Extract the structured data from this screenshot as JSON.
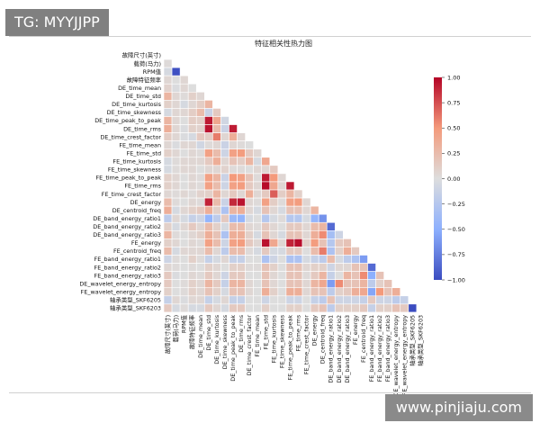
{
  "overlay": {
    "tag": "TG: MYYJJPP",
    "watermark": "www.pinjiaju.com"
  },
  "colors": {
    "neg": "#3b4cc0",
    "mid": "#dddddd",
    "pos": "#b40426",
    "grid": "#ffffff"
  },
  "chart_data": {
    "type": "heatmap",
    "title": "特征相关性热力图",
    "mask": "upper-triangle",
    "vmin": -1.0,
    "vmax": 1.0,
    "colorbar_ticks": [
      1.0,
      0.75,
      0.5,
      0.25,
      0.0,
      -0.25,
      -0.5,
      -0.75,
      -1.0
    ],
    "colorbar_tick_labels": [
      "1.00",
      "0.75",
      "0.50",
      "0.25",
      "0.00",
      "−0.25",
      "−0.50",
      "−0.75",
      "−1.00"
    ],
    "labels": [
      "故障尺寸(英寸)",
      "载荷(马力)",
      "RPM值",
      "故障特征频率",
      "DE_time_mean",
      "DE_time_std",
      "DE_time_kurtosis",
      "DE_time_skewness",
      "DE_time_peak_to_peak",
      "DE_time_rms",
      "DE_time_crest_factor",
      "FE_time_mean",
      "FE_time_std",
      "FE_time_kurtosis",
      "FE_time_skewness",
      "FE_time_peak_to_peak",
      "FE_time_rms",
      "FE_time_crest_factor",
      "DE_energy",
      "DE_centroid_freq",
      "DE_band_energy_ratio1",
      "DE_band_energy_ratio2",
      "DE_band_energy_ratio3",
      "FE_energy",
      "FE_centroid_freq",
      "FE_band_energy_ratio1",
      "FE_band_energy_ratio2",
      "FE_band_energy_ratio3",
      "DE_wavelet_energy_entropy",
      "FE_wavelet_energy_entropy",
      "轴承类型_SKF6205",
      "轴承类型_SKF6203"
    ],
    "matrix": [
      [],
      [
        0.02
      ],
      [
        -0.05,
        -0.98
      ],
      [
        0.05,
        0.0,
        0.05
      ],
      [
        0.08,
        -0.02,
        0.05,
        0.0
      ],
      [
        0.3,
        0.05,
        0.02,
        0.1,
        0.05
      ],
      [
        0.1,
        0.05,
        -0.05,
        0.05,
        0.12,
        0.3
      ],
      [
        -0.05,
        0.05,
        0.05,
        0.12,
        0.25,
        -0.12,
        0.15
      ],
      [
        0.3,
        0.05,
        0.0,
        0.12,
        0.1,
        0.93,
        0.4,
        -0.08
      ],
      [
        0.35,
        0.05,
        -0.02,
        0.1,
        0.08,
        0.95,
        0.25,
        -0.12,
        0.92
      ],
      [
        0.12,
        0.05,
        -0.02,
        -0.05,
        0.15,
        0.12,
        0.6,
        0.05,
        0.35,
        0.05
      ],
      [
        0.05,
        -0.02,
        0.05,
        0.05,
        -0.08,
        0.02,
        0.05,
        -0.12,
        0.05,
        0.02,
        0.0
      ],
      [
        0.1,
        0.05,
        0.0,
        0.05,
        0.02,
        0.45,
        0.25,
        -0.1,
        0.45,
        0.48,
        0.15,
        0.05
      ],
      [
        -0.05,
        0.02,
        0.05,
        0.05,
        0.05,
        0.15,
        0.35,
        0.05,
        0.2,
        0.12,
        0.3,
        -0.05,
        0.4
      ],
      [
        -0.05,
        0.02,
        0.05,
        0.05,
        0.0,
        0.05,
        0.05,
        0.08,
        0.02,
        0.02,
        0.0,
        0.05,
        0.05,
        0.15
      ],
      [
        0.1,
        0.05,
        0.0,
        0.05,
        0.02,
        0.45,
        0.3,
        -0.12,
        0.5,
        0.45,
        0.2,
        0.02,
        0.93,
        0.5,
        0.05
      ],
      [
        0.1,
        0.05,
        0.0,
        0.05,
        0.02,
        0.45,
        0.25,
        -0.1,
        0.45,
        0.48,
        0.15,
        0.05,
        0.98,
        0.4,
        0.05,
        0.93
      ],
      [
        0.05,
        0.02,
        0.05,
        0.02,
        0.08,
        0.1,
        0.3,
        0.05,
        0.15,
        0.05,
        0.35,
        0.05,
        0.15,
        0.7,
        0.12,
        0.3,
        0.1
      ],
      [
        0.25,
        0.02,
        0.0,
        0.05,
        0.02,
        0.9,
        0.25,
        -0.12,
        0.88,
        0.95,
        0.05,
        0.02,
        0.45,
        0.12,
        0.02,
        0.45,
        0.48,
        0.05
      ],
      [
        0.35,
        -0.05,
        0.05,
        0.1,
        0.15,
        0.35,
        0.1,
        -0.3,
        0.3,
        0.35,
        0.05,
        -0.05,
        0.2,
        0.05,
        -0.05,
        0.2,
        0.2,
        0.05,
        0.3
      ],
      [
        -0.2,
        0.05,
        -0.05,
        -0.15,
        -0.1,
        -0.45,
        -0.2,
        0.15,
        -0.4,
        -0.45,
        -0.05,
        0.0,
        -0.25,
        -0.05,
        0.02,
        -0.25,
        -0.25,
        -0.05,
        -0.45,
        -0.65
      ],
      [
        0.1,
        -0.05,
        0.05,
        0.15,
        0.05,
        0.25,
        0.1,
        -0.05,
        0.25,
        0.25,
        0.05,
        0.02,
        0.15,
        0.05,
        0.0,
        0.15,
        0.15,
        0.05,
        0.25,
        0.3,
        -0.85
      ],
      [
        0.3,
        0.02,
        0.0,
        0.05,
        0.1,
        0.35,
        0.2,
        -0.3,
        0.35,
        0.35,
        0.1,
        -0.05,
        0.2,
        0.05,
        -0.05,
        0.2,
        0.2,
        0.05,
        0.35,
        0.55,
        -0.35,
        -0.1
      ],
      [
        0.1,
        0.05,
        0.0,
        0.05,
        0.02,
        0.45,
        0.25,
        -0.1,
        0.45,
        0.48,
        0.15,
        0.05,
        0.95,
        0.4,
        0.05,
        0.9,
        0.97,
        0.1,
        0.48,
        0.2,
        -0.25,
        0.15,
        0.2
      ],
      [
        0.25,
        -0.05,
        0.05,
        0.05,
        0.05,
        0.25,
        0.05,
        -0.2,
        0.25,
        0.25,
        0.02,
        -0.05,
        0.15,
        -0.05,
        -0.05,
        0.15,
        0.15,
        0.0,
        0.25,
        0.6,
        -0.3,
        0.1,
        0.35,
        0.15
      ],
      [
        -0.1,
        0.02,
        0.0,
        0.1,
        0.02,
        -0.15,
        -0.05,
        0.05,
        -0.15,
        -0.15,
        0.0,
        0.0,
        -0.3,
        -0.1,
        0.0,
        -0.3,
        -0.3,
        -0.05,
        -0.15,
        -0.2,
        0.25,
        -0.05,
        -0.2,
        -0.3,
        -0.6
      ],
      [
        0.05,
        0.02,
        0.0,
        0.02,
        0.0,
        0.1,
        0.05,
        0.0,
        0.1,
        0.1,
        0.02,
        0.02,
        0.2,
        0.1,
        0.0,
        0.2,
        0.2,
        0.05,
        0.1,
        0.1,
        -0.1,
        0.05,
        0.05,
        0.2,
        0.2,
        -0.85
      ],
      [
        0.15,
        -0.02,
        0.0,
        0.05,
        0.02,
        0.15,
        0.05,
        -0.1,
        0.15,
        0.15,
        0.0,
        0.0,
        0.2,
        0.05,
        0.0,
        0.2,
        0.2,
        0.02,
        0.15,
        0.3,
        -0.15,
        0.0,
        0.3,
        0.2,
        0.55,
        -0.5,
        0.2
      ],
      [
        0.15,
        0.0,
        0.02,
        0.1,
        0.05,
        0.3,
        0.15,
        -0.15,
        0.3,
        0.3,
        0.05,
        0.0,
        0.2,
        0.05,
        0.0,
        0.2,
        0.2,
        0.05,
        0.3,
        0.4,
        -0.6,
        0.55,
        0.2,
        0.2,
        0.3,
        -0.2,
        0.1,
        0.2
      ],
      [
        0.1,
        0.0,
        0.02,
        0.1,
        0.05,
        0.2,
        0.1,
        -0.05,
        0.2,
        0.2,
        0.05,
        0.0,
        0.35,
        0.1,
        0.0,
        0.35,
        0.35,
        0.05,
        0.2,
        0.2,
        -0.2,
        0.1,
        0.15,
        0.35,
        0.4,
        -0.55,
        0.5,
        0.2,
        0.35
      ],
      [
        -0.15,
        0.05,
        -0.02,
        0.05,
        0.05,
        -0.15,
        -0.05,
        0.05,
        -0.15,
        -0.15,
        0.0,
        0.0,
        -0.1,
        0.0,
        0.0,
        -0.1,
        -0.1,
        0.0,
        -0.15,
        -0.2,
        0.2,
        -0.1,
        -0.1,
        -0.1,
        -0.15,
        0.15,
        -0.1,
        -0.1,
        -0.2,
        -0.15
      ],
      [
        0.15,
        -0.05,
        0.02,
        -0.05,
        -0.05,
        0.15,
        0.05,
        -0.05,
        0.15,
        0.15,
        0.0,
        0.0,
        0.1,
        0.0,
        0.0,
        0.1,
        0.1,
        0.0,
        0.15,
        0.2,
        -0.2,
        0.1,
        0.1,
        0.1,
        0.15,
        -0.15,
        0.1,
        0.1,
        0.2,
        0.15,
        -1.0
      ]
    ]
  }
}
